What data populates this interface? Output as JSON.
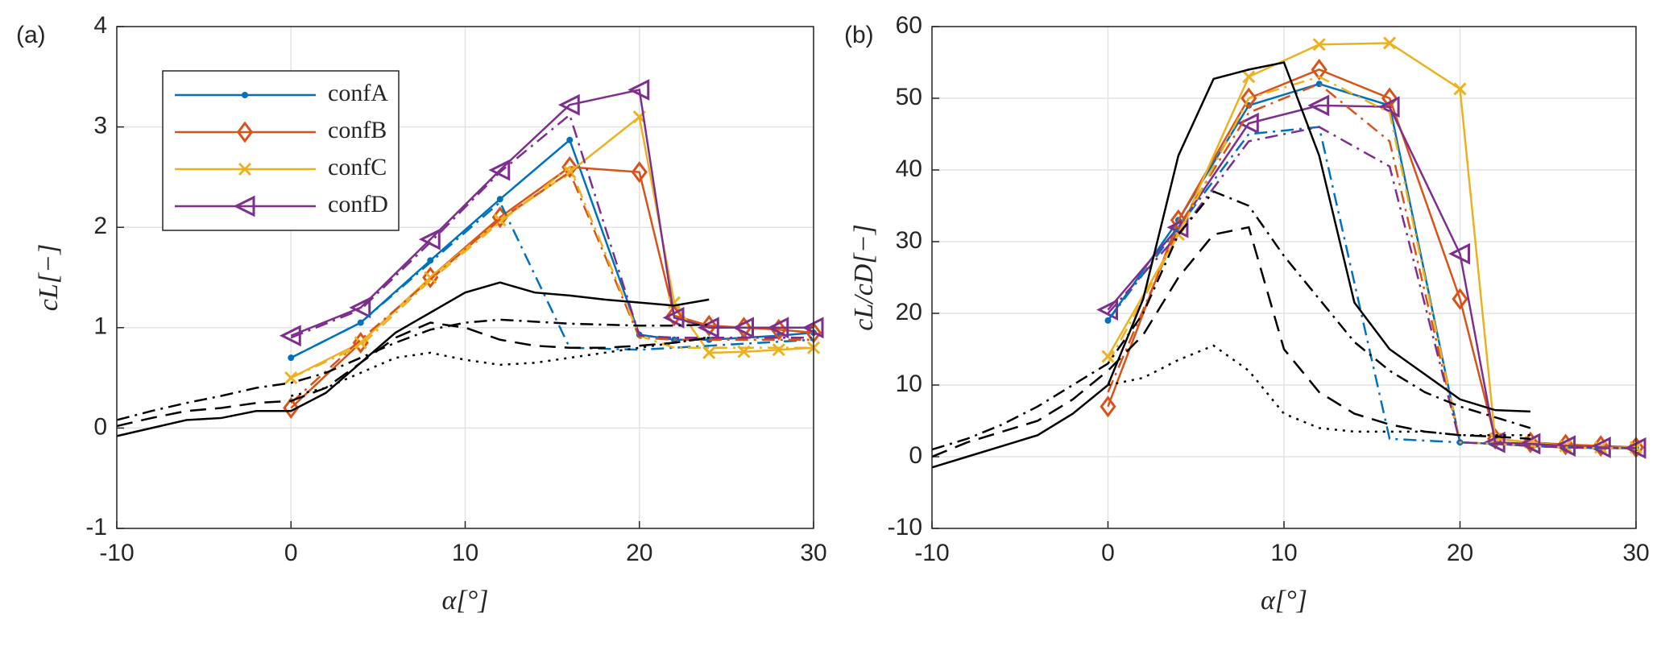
{
  "chart_data": [
    {
      "type": "line",
      "title": "(a)",
      "xlabel": "α[°]",
      "ylabel": "cL[−]",
      "xlim": [
        -10,
        30
      ],
      "ylim": [
        -1,
        4
      ],
      "xticks": [
        -10,
        0,
        10,
        20,
        30
      ],
      "yticks": [
        -1,
        0,
        1,
        2,
        3,
        4
      ],
      "grid": true,
      "legend": "upper left",
      "series": [
        {
          "name": "confA",
          "color": "#0072bd",
          "style": "solid",
          "marker": "dot",
          "x": [
            0,
            4,
            8,
            12,
            16,
            20,
            22,
            24,
            26,
            28,
            30
          ],
          "values": [
            0.7,
            1.05,
            1.67,
            2.28,
            2.87,
            0.93,
            0.88,
            0.88,
            0.9,
            0.92,
            0.95
          ]
        },
        {
          "name": "confB",
          "color": "#d95319",
          "style": "solid",
          "marker": "diamond",
          "x": [
            0,
            4,
            8,
            12,
            16,
            20,
            22,
            24,
            26,
            28,
            30
          ],
          "values": [
            0.2,
            0.85,
            1.5,
            2.1,
            2.6,
            2.55,
            1.12,
            1.02,
            1.0,
            0.98,
            0.95
          ]
        },
        {
          "name": "confC",
          "color": "#edb120",
          "style": "solid",
          "marker": "x",
          "x": [
            0,
            4,
            8,
            12,
            16,
            20,
            22,
            24,
            26,
            28,
            30
          ],
          "values": [
            0.5,
            0.85,
            1.5,
            2.07,
            2.55,
            3.1,
            1.25,
            0.75,
            0.76,
            0.78,
            0.8
          ]
        },
        {
          "name": "confD",
          "color": "#7e2f8e",
          "style": "solid",
          "marker": "triangle",
          "x": [
            0,
            4,
            8,
            12,
            16,
            20,
            22,
            24,
            26,
            28,
            30
          ],
          "values": [
            0.92,
            1.2,
            1.88,
            2.57,
            3.22,
            3.37,
            1.1,
            1.0,
            1.0,
            1.0,
            1.0
          ]
        },
        {
          "color": "#0072bd",
          "style": "dashdot",
          "x": [
            0,
            4,
            8,
            12,
            16,
            20,
            22,
            24,
            26,
            28,
            30
          ],
          "values": [
            0.7,
            1.05,
            1.65,
            2.25,
            0.8,
            0.78,
            0.8,
            0.82,
            0.84,
            0.86,
            0.88
          ]
        },
        {
          "color": "#d95319",
          "style": "dashdot",
          "x": [
            0,
            4,
            8,
            12,
            16,
            20,
            22,
            24,
            26,
            28,
            30
          ],
          "values": [
            0.25,
            0.88,
            1.48,
            2.08,
            2.55,
            0.9,
            0.88,
            0.88,
            0.88,
            0.88,
            0.88
          ]
        },
        {
          "color": "#edb120",
          "style": "dashdot",
          "x": [
            0,
            4,
            8,
            12,
            16,
            20,
            22,
            24,
            26,
            28,
            30
          ],
          "values": [
            0.5,
            0.82,
            1.47,
            2.05,
            2.6,
            0.92,
            0.8,
            0.8,
            0.8,
            0.8,
            0.8
          ]
        },
        {
          "color": "#7e2f8e",
          "style": "dashdot",
          "x": [
            0,
            4,
            8,
            12,
            16,
            20,
            22,
            24,
            26,
            28,
            30
          ],
          "values": [
            0.9,
            1.18,
            1.85,
            2.55,
            3.12,
            0.92,
            0.9,
            0.9,
            0.9,
            0.9,
            0.9
          ]
        },
        {
          "color": "#000000",
          "style": "solid",
          "x": [
            -10,
            -8,
            -6,
            -4,
            -2,
            0,
            2,
            4,
            6,
            8,
            10,
            12,
            14,
            16,
            18,
            20,
            22,
            24
          ],
          "values": [
            -0.08,
            0,
            0.08,
            0.1,
            0.17,
            0.17,
            0.35,
            0.65,
            0.95,
            1.15,
            1.35,
            1.45,
            1.35,
            1.32,
            1.28,
            1.25,
            1.22,
            1.28
          ]
        },
        {
          "color": "#000000",
          "style": "dashdot",
          "x": [
            -10,
            -8,
            -6,
            -4,
            -2,
            0,
            2,
            4,
            6,
            8,
            10,
            12,
            14,
            16,
            18,
            20,
            22,
            24
          ],
          "values": [
            0.08,
            0.17,
            0.25,
            0.32,
            0.4,
            0.45,
            0.55,
            0.7,
            0.85,
            0.98,
            1.05,
            1.08,
            1.06,
            1.04,
            1.03,
            1.02,
            1.02,
            1.03
          ]
        },
        {
          "color": "#000000",
          "style": "dashed",
          "x": [
            -10,
            -8,
            -6,
            -4,
            -2,
            0,
            2,
            4,
            6,
            8,
            10,
            12,
            14,
            16,
            18,
            20,
            22,
            24
          ],
          "values": [
            0.02,
            0.1,
            0.17,
            0.2,
            0.25,
            0.27,
            0.4,
            0.65,
            0.9,
            1.05,
            1.0,
            0.88,
            0.82,
            0.8,
            0.8,
            0.82,
            0.85,
            0.9
          ]
        },
        {
          "color": "#000000",
          "style": "dotted",
          "x": [
            0,
            2,
            4,
            6,
            8,
            10,
            12,
            14,
            16,
            18,
            20,
            22,
            24
          ],
          "values": [
            0.32,
            0.4,
            0.55,
            0.7,
            0.75,
            0.68,
            0.63,
            0.65,
            0.7,
            0.75,
            0.8,
            0.85,
            0.9
          ]
        }
      ]
    },
    {
      "type": "line",
      "title": "(b)",
      "xlabel": "α[°]",
      "ylabel": "cL/cD[−]",
      "xlim": [
        -10,
        30
      ],
      "ylim": [
        -10,
        60
      ],
      "xticks": [
        -10,
        0,
        10,
        20,
        30
      ],
      "yticks": [
        -10,
        0,
        10,
        20,
        30,
        40,
        50,
        60
      ],
      "grid": true,
      "series": [
        {
          "color": "#0072bd",
          "style": "solid",
          "marker": "dot",
          "x": [
            0,
            4,
            8,
            12,
            16,
            20,
            22,
            24,
            26,
            28,
            30
          ],
          "values": [
            19,
            33,
            49,
            52,
            49,
            2,
            1.8,
            1.5,
            1.3,
            1.2,
            1.2
          ]
        },
        {
          "color": "#d95319",
          "style": "solid",
          "marker": "diamond",
          "x": [
            0,
            4,
            8,
            12,
            16,
            20,
            22,
            24,
            26,
            28,
            30
          ],
          "values": [
            7,
            33,
            50,
            54,
            50,
            22,
            2.5,
            2,
            1.7,
            1.5,
            1.3
          ]
        },
        {
          "color": "#edb120",
          "style": "solid",
          "marker": "x",
          "x": [
            0,
            4,
            8,
            12,
            16,
            20,
            22,
            24,
            26,
            28,
            30
          ],
          "values": [
            14,
            31,
            53,
            57.5,
            57.7,
            51.3,
            2.5,
            2,
            1.5,
            1.3,
            1.3
          ]
        },
        {
          "color": "#7e2f8e",
          "style": "solid",
          "marker": "triangle",
          "x": [
            0,
            4,
            8,
            12,
            16,
            20,
            22,
            24,
            26,
            28,
            30
          ],
          "values": [
            20.5,
            32,
            46.5,
            49,
            48.8,
            28.3,
            2,
            1.8,
            1.5,
            1.3,
            1.2
          ]
        },
        {
          "color": "#0072bd",
          "style": "dashdot",
          "x": [
            0,
            4,
            8,
            12,
            16,
            20,
            22,
            24,
            26,
            28,
            30
          ],
          "values": [
            19,
            32,
            45,
            46,
            2.5,
            2,
            1.8,
            1.5,
            1.3,
            1.2,
            1.2
          ]
        },
        {
          "color": "#d95319",
          "style": "dashdot",
          "x": [
            0,
            4,
            8,
            12,
            16,
            20,
            22,
            24,
            26,
            28,
            30
          ],
          "values": [
            9,
            32,
            48,
            52,
            44,
            2,
            1.8,
            1.5,
            1.3,
            1.2,
            1.2
          ]
        },
        {
          "color": "#edb120",
          "style": "dashdot",
          "x": [
            0,
            4,
            8,
            12,
            16,
            20,
            22,
            24,
            26,
            28,
            30
          ],
          "values": [
            13,
            31,
            50,
            53,
            48,
            2,
            1.8,
            1.5,
            1.3,
            1.2,
            1.2
          ]
        },
        {
          "color": "#7e2f8e",
          "style": "dashdot",
          "x": [
            0,
            4,
            8,
            12,
            16,
            20,
            22,
            24,
            26,
            28,
            30
          ],
          "values": [
            20,
            31,
            44,
            46,
            40.5,
            2,
            1.8,
            1.5,
            1.3,
            1.2,
            1.2
          ]
        },
        {
          "color": "#000000",
          "style": "solid",
          "x": [
            -10,
            -8,
            -6,
            -4,
            -2,
            0,
            2,
            4,
            6,
            8,
            10,
            12,
            14,
            16,
            18,
            20,
            22,
            24
          ],
          "values": [
            -1.5,
            0,
            1.5,
            3,
            6,
            10,
            22,
            42,
            52.7,
            54,
            55,
            42,
            21.5,
            15,
            11.5,
            8,
            6.5,
            6.3
          ]
        },
        {
          "color": "#000000",
          "style": "dashdot",
          "x": [
            -10,
            -8,
            -6,
            -4,
            -2,
            0,
            2,
            4,
            6,
            8,
            10,
            12,
            14,
            16,
            18,
            20,
            22,
            24
          ],
          "values": [
            1,
            2.5,
            4.5,
            7,
            10,
            13,
            20,
            31,
            37,
            35,
            28,
            22,
            16,
            12,
            9,
            7,
            5.5,
            4
          ]
        },
        {
          "color": "#000000",
          "style": "dashed",
          "x": [
            -10,
            -8,
            -6,
            -4,
            -2,
            0,
            2,
            4,
            6,
            8,
            10,
            12,
            14,
            16,
            18,
            20,
            22,
            24
          ],
          "values": [
            0,
            2,
            3.5,
            5,
            8,
            12,
            17,
            25,
            31,
            32,
            15,
            9,
            6,
            4.5,
            3.5,
            3,
            2.8,
            2.5
          ]
        },
        {
          "color": "#000000",
          "style": "dotted",
          "x": [
            0,
            2,
            4,
            6,
            8,
            10,
            12,
            14,
            16,
            18,
            20,
            22,
            24
          ],
          "values": [
            10,
            11,
            13.5,
            15.5,
            12,
            6,
            4,
            3.5,
            3.5,
            3.5,
            3,
            3,
            3
          ]
        }
      ]
    }
  ]
}
